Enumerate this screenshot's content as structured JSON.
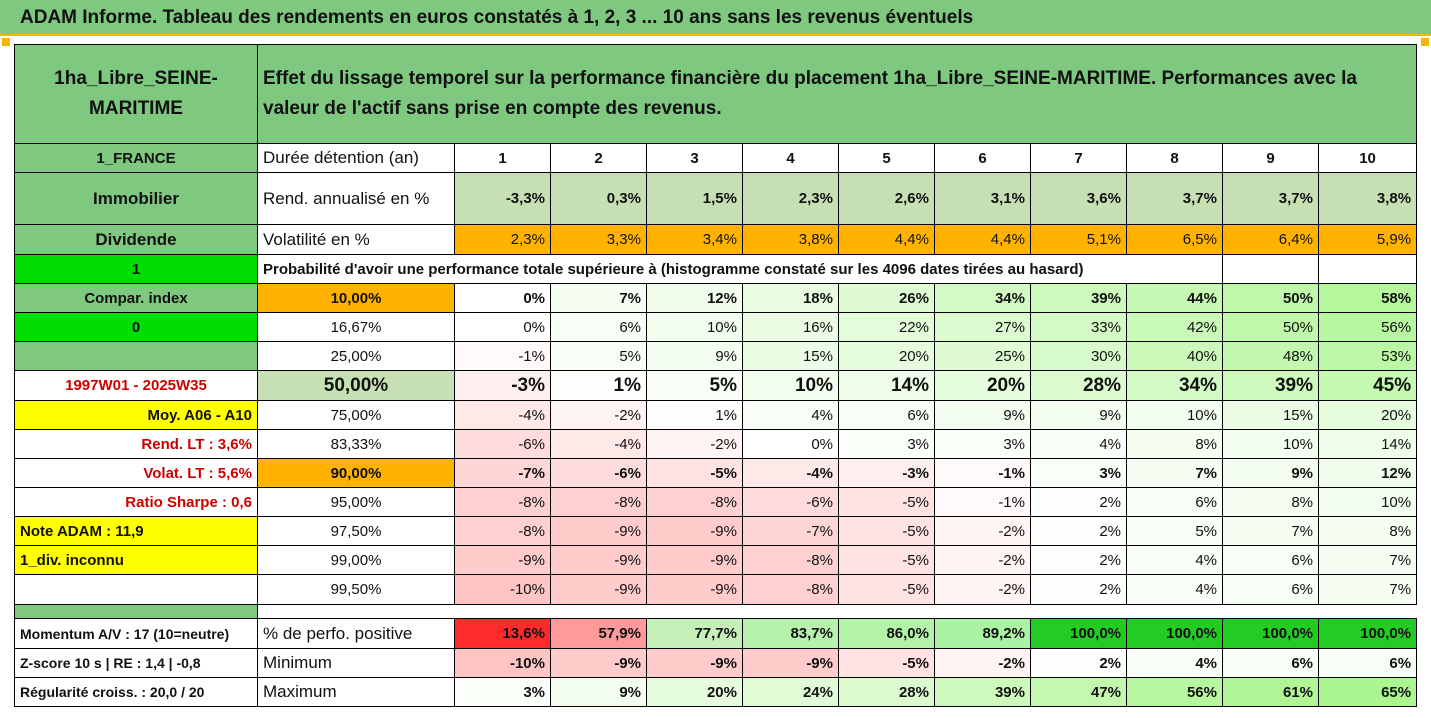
{
  "title": "ADAM Informe. Tableau des rendements en euros constatés à 1, 2, 3 ... 10 ans sans les revenus éventuels",
  "colors": {
    "green": "#7fc87f",
    "bright_green": "#00dd00",
    "orange": "#ffb300",
    "yellow": "#ffff00",
    "red_text": "#d00000"
  },
  "asset": {
    "name": "1ha_Libre_SEINE-MARITIME",
    "description": "Effet du lissage temporel sur la performance financière du placement 1ha_Libre_SEINE-MARITIME. Performances avec la valeur de l'actif sans prise en compte des revenus."
  },
  "side": {
    "country": "1_FRANCE",
    "category": "Immobilier",
    "type": "Dividende",
    "v1": "1",
    "compar": "Compar. index",
    "v0": "0",
    "period": "1997W01 - 2025W35",
    "moy": "Moy. A06 - A10",
    "rend_lt": "Rend. LT :   3,6%",
    "volat_lt": "Volat. LT :   5,6%",
    "sharpe": "Ratio Sharpe :   0,6",
    "note": "Note ADAM : 11,9",
    "div": "1_div. inconnu"
  },
  "header": {
    "duree": "Durée détention (an)",
    "years": [
      "1",
      "2",
      "3",
      "4",
      "5",
      "6",
      "7",
      "8",
      "9",
      "10"
    ]
  },
  "rend": {
    "label": "Rend. annualisé en %",
    "values": [
      "-3,3%",
      "0,3%",
      "1,5%",
      "2,3%",
      "2,6%",
      "3,1%",
      "3,6%",
      "3,7%",
      "3,7%",
      "3,8%"
    ]
  },
  "vol": {
    "label": "Volatilité en %",
    "values": [
      "2,3%",
      "3,3%",
      "3,4%",
      "3,8%",
      "4,4%",
      "4,4%",
      "5,1%",
      "6,5%",
      "6,4%",
      "5,9%"
    ]
  },
  "prob_label": "Probabilité d'avoir une performance totale supérieure à (histogramme constaté sur les 4096 dates tirées au hasard)",
  "percentiles": [
    {
      "p": "10,00%",
      "values": [
        "0%",
        "7%",
        "12%",
        "18%",
        "26%",
        "34%",
        "39%",
        "44%",
        "50%",
        "58%"
      ]
    },
    {
      "p": "16,67%",
      "values": [
        "0%",
        "6%",
        "10%",
        "16%",
        "22%",
        "27%",
        "33%",
        "42%",
        "50%",
        "56%"
      ]
    },
    {
      "p": "25,00%",
      "values": [
        "-1%",
        "5%",
        "9%",
        "15%",
        "20%",
        "25%",
        "30%",
        "40%",
        "48%",
        "53%"
      ]
    },
    {
      "p": "50,00%",
      "values": [
        "-3%",
        "1%",
        "5%",
        "10%",
        "14%",
        "20%",
        "28%",
        "34%",
        "39%",
        "45%"
      ]
    },
    {
      "p": "75,00%",
      "values": [
        "-4%",
        "-2%",
        "1%",
        "4%",
        "6%",
        "9%",
        "9%",
        "10%",
        "15%",
        "20%"
      ]
    },
    {
      "p": "83,33%",
      "values": [
        "-6%",
        "-4%",
        "-2%",
        "0%",
        "3%",
        "3%",
        "4%",
        "8%",
        "10%",
        "14%"
      ]
    },
    {
      "p": "90,00%",
      "values": [
        "-7%",
        "-6%",
        "-5%",
        "-4%",
        "-3%",
        "-1%",
        "3%",
        "7%",
        "9%",
        "12%"
      ]
    },
    {
      "p": "95,00%",
      "values": [
        "-8%",
        "-8%",
        "-8%",
        "-6%",
        "-5%",
        "-1%",
        "2%",
        "6%",
        "8%",
        "10%"
      ]
    },
    {
      "p": "97,50%",
      "values": [
        "-8%",
        "-9%",
        "-9%",
        "-7%",
        "-5%",
        "-2%",
        "2%",
        "5%",
        "7%",
        "8%"
      ]
    },
    {
      "p": "99,00%",
      "values": [
        "-9%",
        "-9%",
        "-9%",
        "-8%",
        "-5%",
        "-2%",
        "2%",
        "4%",
        "6%",
        "7%"
      ]
    },
    {
      "p": "99,50%",
      "values": [
        "-10%",
        "-9%",
        "-9%",
        "-8%",
        "-5%",
        "-2%",
        "2%",
        "4%",
        "6%",
        "7%"
      ]
    }
  ],
  "bottom": [
    {
      "side": "Momentum A/V : 17 (10=neutre)",
      "label": "% de perfo. positive",
      "values": [
        "13,6%",
        "57,9%",
        "77,7%",
        "83,7%",
        "86,0%",
        "89,2%",
        "100,0%",
        "100,0%",
        "100,0%",
        "100,0%"
      ]
    },
    {
      "side": "Z-score 10 s  |  RE : 1,4  |  -0,8",
      "label": "Minimum",
      "values": [
        "-10%",
        "-9%",
        "-9%",
        "-9%",
        "-5%",
        "-2%",
        "2%",
        "4%",
        "6%",
        "6%"
      ]
    },
    {
      "side": "Régularité croiss. : 20,0 / 20",
      "label": "Maximum",
      "values": [
        "3%",
        "9%",
        "20%",
        "24%",
        "28%",
        "39%",
        "47%",
        "56%",
        "61%",
        "65%"
      ]
    }
  ]
}
